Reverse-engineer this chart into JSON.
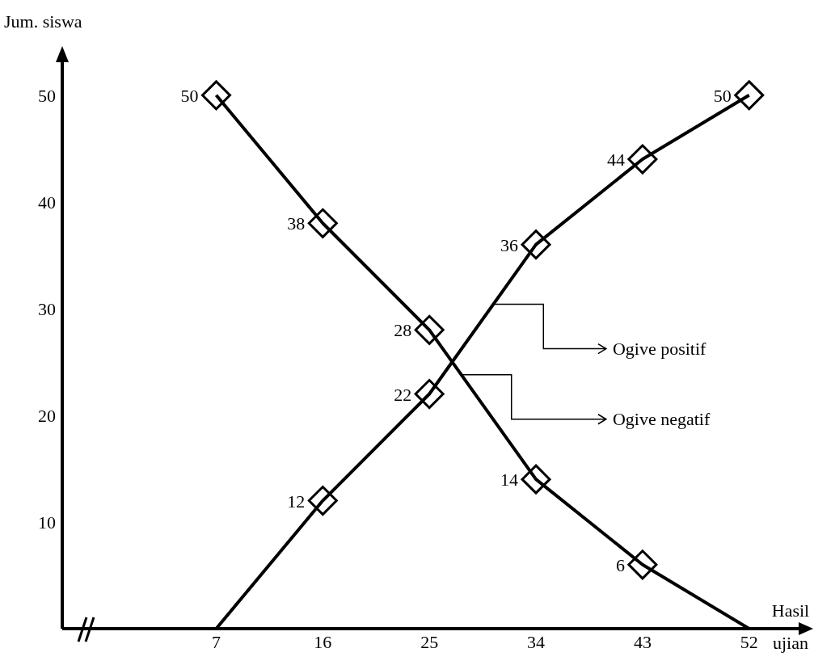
{
  "chart_data": {
    "type": "line",
    "xlabel": "Hasil ujian",
    "ylabel": "Jum. siswa",
    "x": [
      7,
      16,
      25,
      34,
      43,
      52
    ],
    "series": [
      {
        "name": "Ogive positif",
        "color": "#000000",
        "values": [
          0,
          12,
          22,
          36,
          44,
          50
        ],
        "value_labels": [
          null,
          "12",
          "22",
          "36",
          "44",
          "50"
        ]
      },
      {
        "name": "Ogive negatif",
        "color": "#000000",
        "values": [
          50,
          38,
          28,
          14,
          6,
          0
        ],
        "value_labels": [
          "50",
          "38",
          "28",
          "14",
          "6",
          null
        ]
      }
    ],
    "xlim": [
      -6,
      57
    ],
    "ylim": [
      0,
      54
    ],
    "xticks": [
      7,
      16,
      25,
      34,
      43,
      52
    ],
    "yticks": [
      10,
      20,
      30,
      40,
      50
    ],
    "grid": false,
    "legend": "right",
    "marker": "diamond",
    "line_style": "solid"
  }
}
